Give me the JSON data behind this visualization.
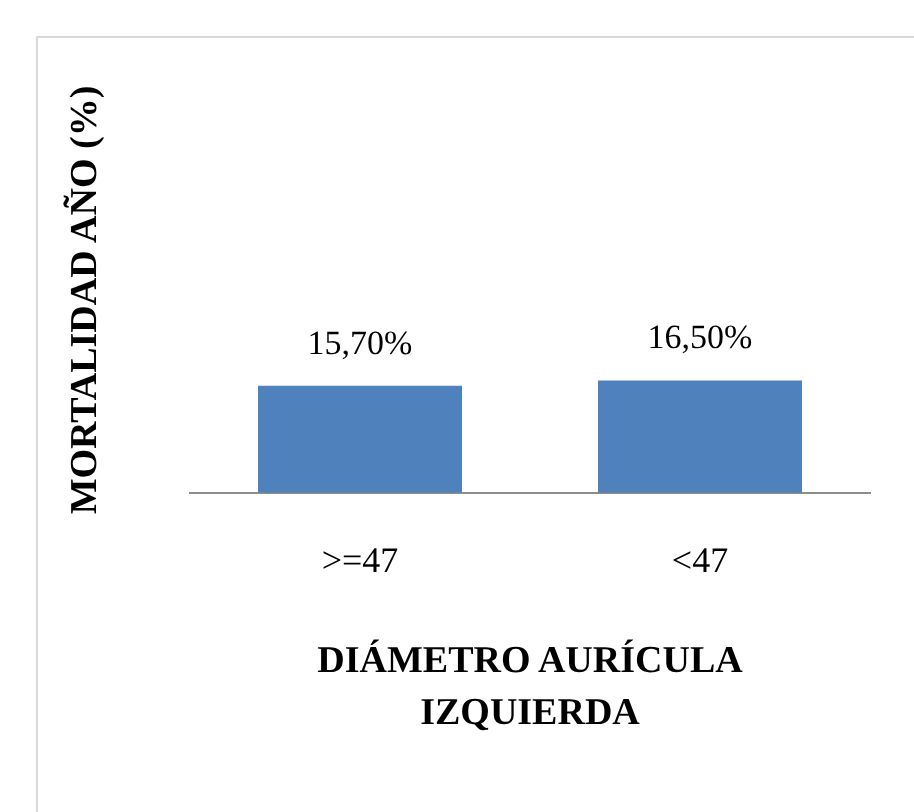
{
  "chart_data": {
    "type": "bar",
    "xlabel": "DIÁMETRO AURÍCULA IZQUIERDA",
    "ylabel": "MORTALIDAD AÑO (%)",
    "categories": [
      ">=47",
      "<47"
    ],
    "values": [
      15.7,
      16.5
    ],
    "value_labels": [
      "15,70%",
      "16,50%"
    ],
    "color": "#4f81bd",
    "grid": false,
    "legend": false,
    "tick_labels": "x"
  }
}
